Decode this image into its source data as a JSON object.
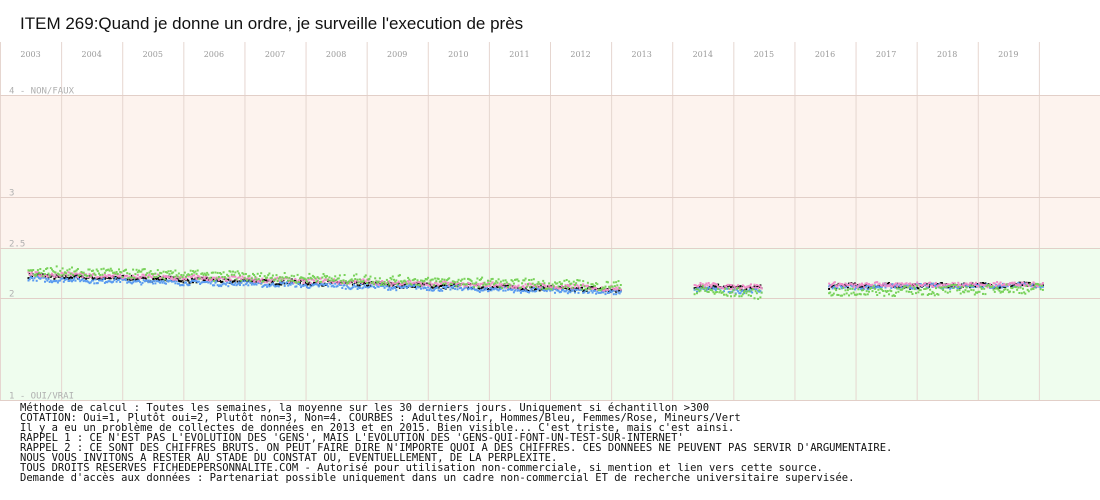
{
  "chart_data": {
    "type": "scatter",
    "title": "ITEM 269:Quand je donne un ordre, je surveille l'execution de près",
    "years": [
      "2003",
      "2004",
      "2005",
      "2006",
      "2007",
      "2008",
      "2009",
      "2010",
      "2011",
      "2012",
      "2013",
      "2014",
      "2015",
      "2016",
      "2017",
      "2018",
      "2019"
    ],
    "y_labels": [
      {
        "value": 4,
        "text": "4 - NON/FAUX"
      },
      {
        "value": 3,
        "text": "3"
      },
      {
        "value": 2.5,
        "text": "2.5"
      },
      {
        "value": 2,
        "text": "2"
      },
      {
        "value": 1,
        "text": "1 - OUI/VRAI"
      }
    ],
    "ylim": [
      1,
      4
    ],
    "xlim": [
      2002.5,
      2020.5
    ],
    "zones": [
      {
        "from": 2.5,
        "to": 4,
        "color": "#fdf3ee"
      },
      {
        "from": 1,
        "to": 2.5,
        "color": "#effdee"
      }
    ],
    "series": [
      {
        "color": "#000000",
        "segments": [
          [
            2002.95,
            2012.65,
            2.22,
            2.08
          ],
          [
            2013.85,
            2014.95,
            2.12,
            2.1
          ],
          [
            2016.05,
            2019.55,
            2.12,
            2.13
          ]
        ]
      },
      {
        "color": "#5a9bf0",
        "segments": [
          [
            2002.95,
            2012.65,
            2.19,
            2.06
          ],
          [
            2013.85,
            2014.95,
            2.09,
            2.07
          ],
          [
            2016.05,
            2019.55,
            2.11,
            2.13
          ]
        ]
      },
      {
        "color": "#f08cc8",
        "segments": [
          [
            2002.95,
            2012.65,
            2.24,
            2.1
          ],
          [
            2013.85,
            2014.95,
            2.13,
            2.11
          ],
          [
            2016.05,
            2019.55,
            2.13,
            2.14
          ]
        ]
      },
      {
        "color": "#78d25a",
        "segments": [
          [
            2002.95,
            2012.65,
            2.27,
            2.12
          ],
          [
            2013.85,
            2014.95,
            2.08,
            2.04
          ],
          [
            2016.05,
            2019.55,
            2.06,
            2.1
          ]
        ]
      }
    ],
    "notes": [
      "Méthode de calcul : Toutes les semaines, la moyenne sur les 30 derniers jours. Uniquement si échantillon >300",
      "COTATION: Oui=1, Plutôt oui=2, Plutôt non=3, Non=4. COURBES : Adultes/Noir, Hommes/Bleu, Femmes/Rose, Mineurs/Vert",
      "Il y a eu un problème de collectes de données en 2013 et en 2015. Bien visible... C'est triste, mais c'est ainsi.",
      "RAPPEL 1 : CE N'EST PAS L'EVOLUTION DES 'GENS', MAIS L'EVOLUTION DES 'GENS-QUI-FONT-UN-TEST-SUR-INTERNET'",
      "RAPPEL 2 : CE SONT DES CHIFFRES BRUTS. ON PEUT FAIRE DIRE N'IMPORTE QUOI A DES CHIFFRES. CES DONNEES NE PEUVENT PAS SERVIR D'ARGUMENTAIRE.",
      "           NOUS VOUS INVITONS A RESTER AU STADE DU CONSTAT OU, EVENTUELLEMENT,  DE LA PERPLEXITE.",
      "TOUS DROITS RESERVES FICHEDEPERSONNALITE.COM - Autorisé pour utilisation non-commerciale, si mention et lien vers cette source.",
      "Demande d'accès aux données : Partenariat possible uniquement dans un cadre non-commercial ET de recherche universitaire supervisée."
    ]
  }
}
